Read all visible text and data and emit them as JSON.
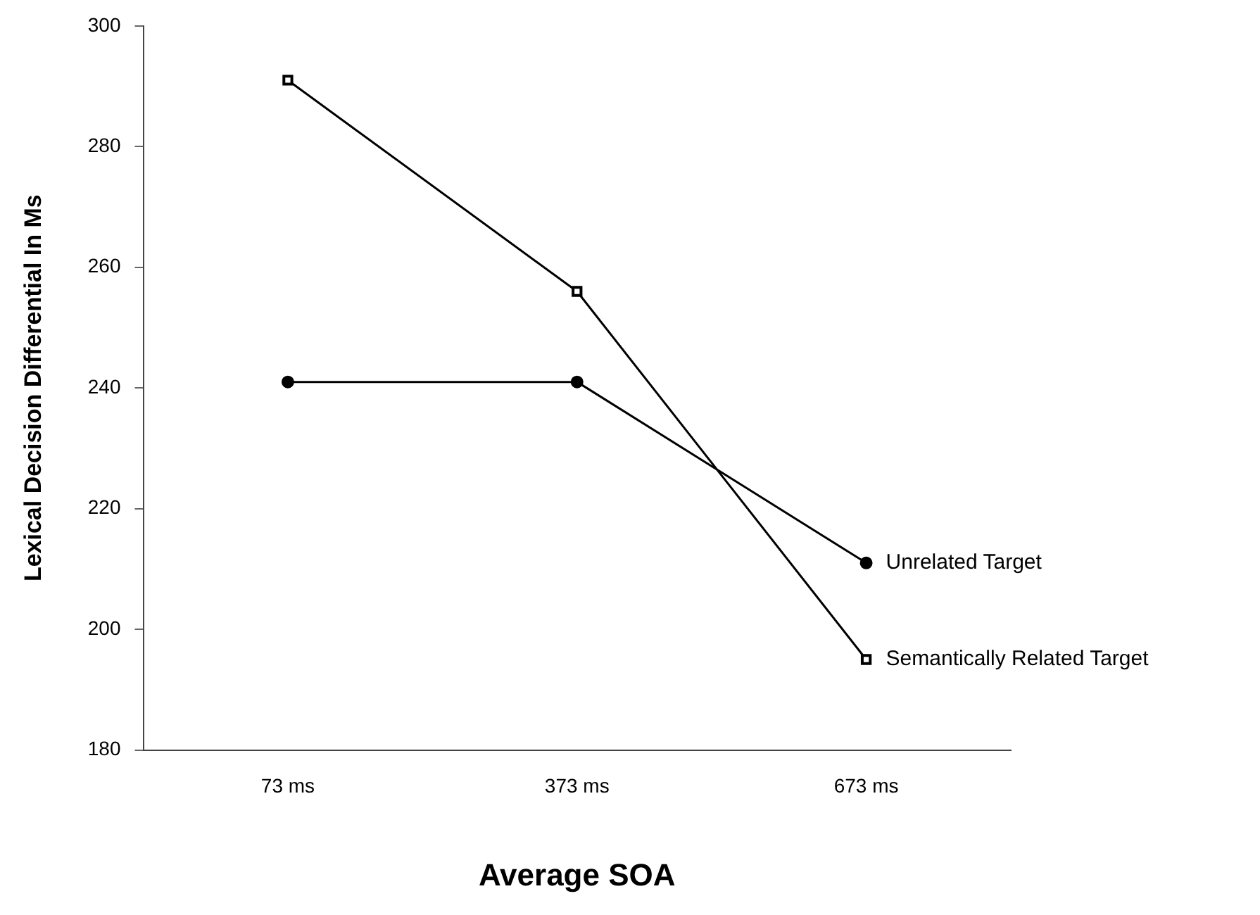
{
  "chart_data": {
    "type": "line",
    "xlabel": "Average SOA",
    "ylabel": "Lexical Decision Differential In Ms",
    "categories": [
      "73 ms",
      "373 ms",
      "673 ms"
    ],
    "series": [
      {
        "name": "Unrelated Target",
        "color": "#000000",
        "marker": "circle",
        "values": [
          241,
          241,
          211
        ]
      },
      {
        "name": "Semantically Related Target",
        "color": "#000000",
        "marker": "square",
        "values": [
          291,
          256,
          195
        ]
      }
    ],
    "ylim": [
      180,
      300
    ],
    "yticks": [
      180,
      200,
      220,
      240,
      260,
      280,
      300
    ],
    "grid": false,
    "legend": false,
    "line_style": "solid"
  }
}
